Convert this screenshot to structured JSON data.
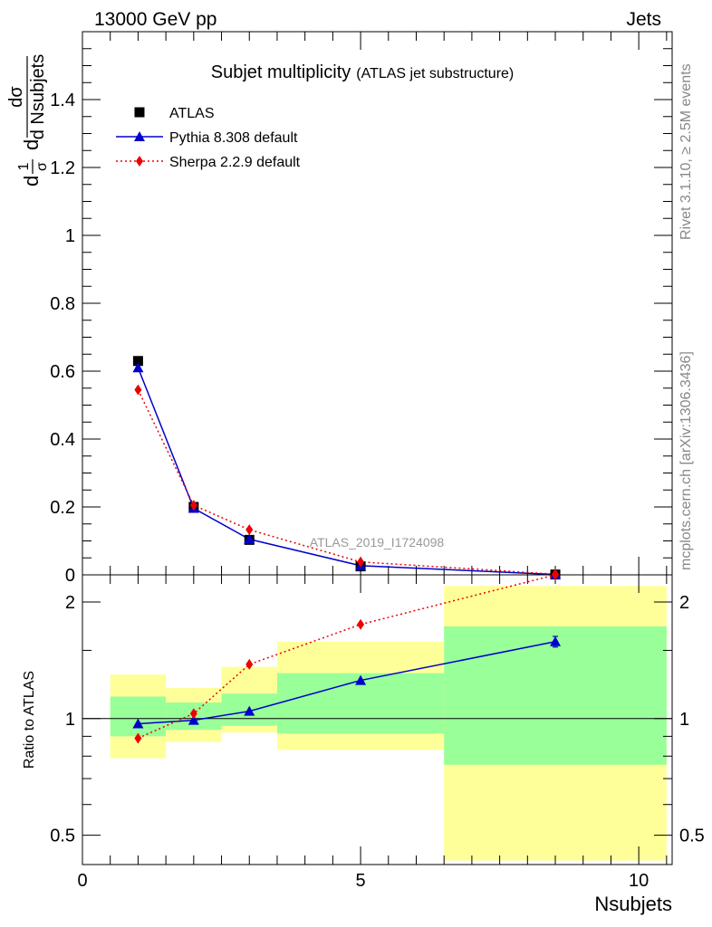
{
  "header": {
    "left": "13000 GeV pp",
    "right": "Jets"
  },
  "side_text": {
    "rivet": "Rivet 3.1.10, ≥ 2.5M events",
    "mcplots": "mcplots.cern.ch [arXiv:1306.3436]"
  },
  "watermark": "ATLAS_2019_I1724098",
  "chart_data": [
    {
      "type": "line",
      "title": "Subjet multiplicity",
      "subtitle": "(ATLAS jet substructure)",
      "ylabel_parts": {
        "frac1_num": "1",
        "frac1_den": "σ",
        "frac2_num": "dσ",
        "frac2_den": "d Nsubjets",
        "prefix": "d",
        "mid": "d"
      },
      "xlim": [
        0,
        10.6
      ],
      "ylim": [
        0,
        1.6
      ],
      "xticks": [
        0,
        5,
        10
      ],
      "yticks": [
        0,
        0.2,
        0.4,
        0.6,
        0.8,
        1,
        1.2,
        1.4
      ],
      "ytick_labels": [
        "0",
        "0.2",
        "0.4",
        "0.6",
        "0.8",
        "1",
        "1.2",
        "1.4"
      ],
      "legend_position": "top-left",
      "series": [
        {
          "name": "ATLAS",
          "marker": "square",
          "color": "#000000",
          "x": [
            1,
            2,
            3,
            5,
            8.5
          ],
          "y": [
            0.63,
            0.2,
            0.103,
            0.025,
            0.001
          ]
        },
        {
          "name": "Pythia 8.308 default",
          "marker": "triangle",
          "color": "#0000cc",
          "line": "solid",
          "x": [
            1,
            2,
            3,
            5,
            8.5
          ],
          "y": [
            0.61,
            0.196,
            0.105,
            0.027,
            0.001
          ]
        },
        {
          "name": "Sherpa 2.2.9 default",
          "marker": "diamond",
          "color": "#ee0000",
          "line": "dotted",
          "x": [
            1,
            2,
            3,
            5,
            8.5
          ],
          "y": [
            0.545,
            0.205,
            0.133,
            0.038,
            0.002
          ]
        }
      ]
    },
    {
      "type": "line",
      "ylabel": "Ratio to ATLAS",
      "xlabel": "Nsubjets",
      "yscale": "log",
      "xlim": [
        0,
        10.6
      ],
      "ylim": [
        0.42,
        2.35
      ],
      "xticks": [
        0,
        5,
        10
      ],
      "xtick_labels": [
        "0",
        "5",
        "10"
      ],
      "yticks": [
        0.5,
        1,
        2
      ],
      "ytick_labels": [
        "0.5",
        "1",
        "2"
      ],
      "bands": [
        {
          "x0": 0.5,
          "x1": 1.5,
          "yellow": [
            0.79,
            1.3
          ],
          "green": [
            0.9,
            1.14
          ]
        },
        {
          "x0": 1.5,
          "x1": 2.5,
          "yellow": [
            0.87,
            1.2
          ],
          "green": [
            0.935,
            1.1
          ]
        },
        {
          "x0": 2.5,
          "x1": 3.5,
          "yellow": [
            0.92,
            1.36
          ],
          "green": [
            0.958,
            1.16
          ]
        },
        {
          "x0": 3.5,
          "x1": 6.5,
          "yellow": [
            0.83,
            1.58
          ],
          "green": [
            0.915,
            1.31
          ]
        },
        {
          "x0": 6.5,
          "x1": 10.5,
          "yellow": [
            0.43,
            2.2
          ],
          "green": [
            0.76,
            1.73
          ]
        }
      ],
      "band_colors": {
        "yellow": "#ffff99",
        "green": "#99ff99"
      },
      "series": [
        {
          "name": "Pythia 8.308 default",
          "color": "#0000cc",
          "marker": "triangle",
          "x": [
            1,
            2,
            3,
            5,
            8.5
          ],
          "y": [
            0.97,
            0.99,
            1.045,
            1.255,
            1.58
          ],
          "yerr": [
            0,
            0,
            0,
            0,
            0.05
          ]
        },
        {
          "name": "Sherpa 2.2.9 default",
          "color": "#ee0000",
          "marker": "diamond",
          "x": [
            1,
            2,
            3,
            5,
            8.5
          ],
          "y": [
            0.89,
            1.03,
            1.38,
            1.75,
            2.35
          ]
        }
      ]
    }
  ]
}
